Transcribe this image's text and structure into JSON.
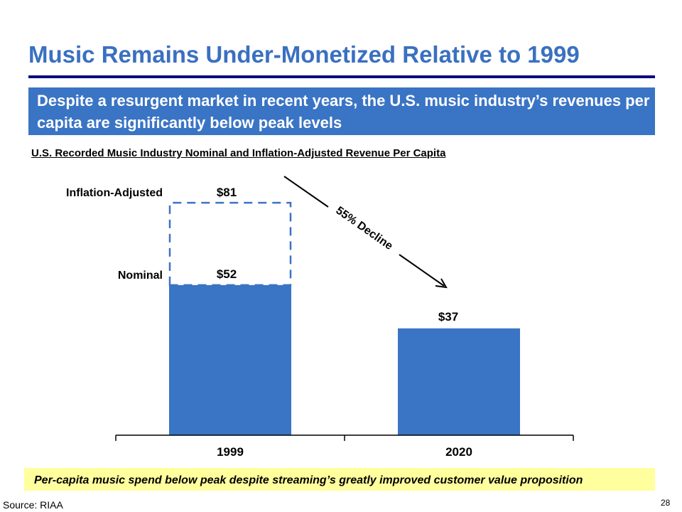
{
  "title": "Music Remains Under-Monetized Relative to 1999",
  "banner": "Despite a resurgent market in recent years, the U.S. music industry’s revenues per capita are significantly below peak levels",
  "chart_data": {
    "type": "bar",
    "title": "U.S. Recorded Music Industry Nominal and Inflation-Adjusted Revenue Per Capita",
    "categories": [
      "1999",
      "2020"
    ],
    "series": [
      {
        "name": "Nominal",
        "values": [
          52,
          37
        ],
        "labels": [
          "$52",
          "$37"
        ]
      },
      {
        "name": "Inflation-Adjusted",
        "values": [
          81,
          null
        ],
        "labels": [
          "$81",
          ""
        ]
      }
    ],
    "ylim": [
      0,
      90
    ],
    "annotation": "55% Decline",
    "colors": {
      "bar": "#3a74c4",
      "dashed": "#3a74c4"
    }
  },
  "series_labels": {
    "inflation": "Inflation-Adjusted",
    "nominal": "Nominal"
  },
  "takeaway": "Per-capita music spend below peak despite streaming’s greatly improved customer value proposition",
  "source": "Source: RIAA",
  "page_number": "28"
}
